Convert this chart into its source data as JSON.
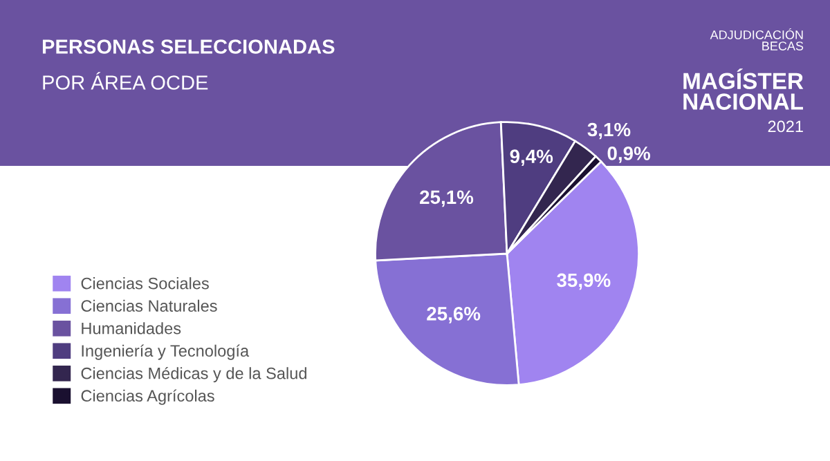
{
  "chart_data": {
    "type": "pie",
    "title": "PERSONAS SELECCIONADAS",
    "subtitle": "POR ÁREA OCDE",
    "annotations": [
      "ADJUDICACIÓN\nBECAS",
      "MAGÍSTER\nNACIONAL",
      "2021"
    ],
    "categories": [
      "Ciencias Sociales",
      "Ciencias Naturales",
      "Humanidades",
      "Ingeniería y Tecnología",
      "Ciencias Médicas y de la Salud",
      "Ciencias Agrícolas"
    ],
    "values": [
      35.9,
      25.6,
      25.1,
      9.4,
      3.1,
      0.9
    ],
    "value_labels": [
      "35,9%",
      "25,6%",
      "25,1%",
      "9,4%",
      "3,1%",
      "0,9%"
    ],
    "colors": [
      "#a084f0",
      "#8670d4",
      "#6a52a0",
      "#4f3d80",
      "#33264f",
      "#1a1030"
    ],
    "legend": "bottom left"
  }
}
